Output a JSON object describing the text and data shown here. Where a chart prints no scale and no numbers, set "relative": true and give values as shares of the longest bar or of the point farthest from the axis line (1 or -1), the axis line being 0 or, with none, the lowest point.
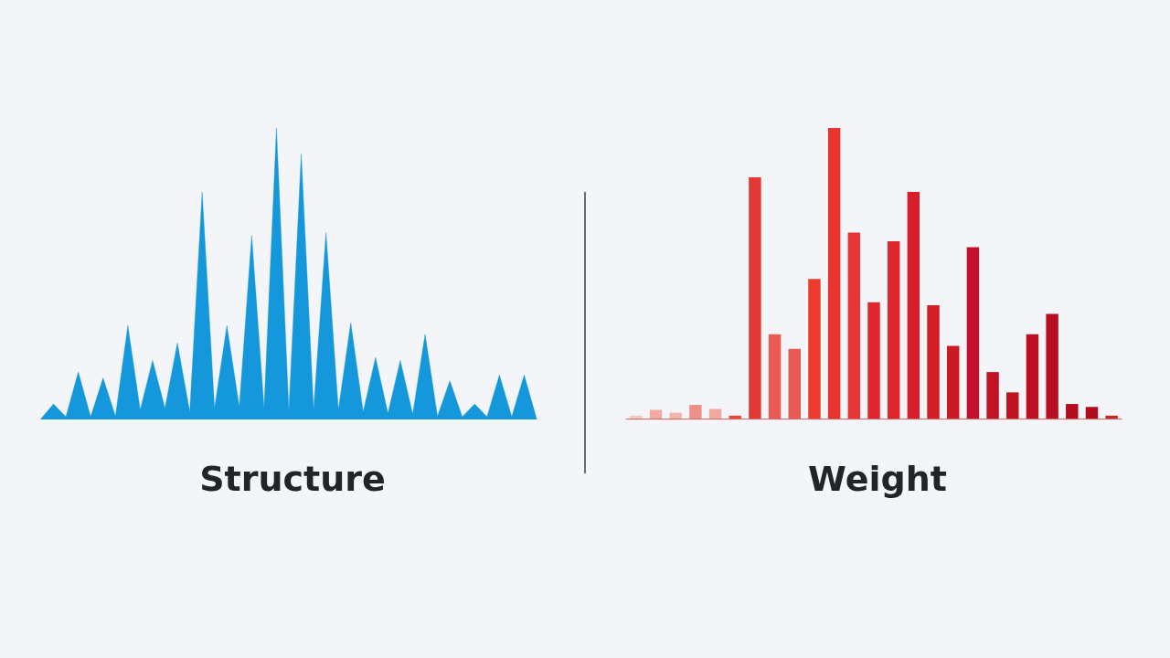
{
  "chart_data": [
    {
      "type": "area",
      "title": "Structure",
      "relative": true,
      "categories": [
        null,
        null,
        null,
        null,
        null,
        null,
        null,
        null,
        null,
        null,
        null,
        null,
        null,
        null,
        null,
        null,
        null,
        null,
        null,
        null,
        null,
        null,
        null,
        null,
        null,
        null,
        null,
        null,
        null,
        null,
        null,
        null,
        null,
        null,
        null,
        null,
        null,
        null,
        null,
        null,
        null
      ],
      "series": [
        {
          "color": "#1597dc",
          "values": [
            0.0,
            0.05,
            0.006,
            0.16,
            0.006,
            0.14,
            0.008,
            0.32,
            0.03,
            0.2,
            0.035,
            0.26,
            0.023,
            0.78,
            0.035,
            0.32,
            0.04,
            0.63,
            0.035,
            1.0,
            0.027,
            0.91,
            0.03,
            0.64,
            0.03,
            0.33,
            0.023,
            0.21,
            0.018,
            0.2,
            0.015,
            0.29,
            0.008,
            0.13,
            0.006,
            0.05,
            0.006,
            0.15,
            0.006,
            0.15,
            0.0
          ]
        }
      ]
    },
    {
      "type": "bar",
      "title": "Weight",
      "relative": true,
      "categories": [
        null,
        null,
        null,
        null,
        null,
        null,
        null,
        null,
        null,
        null,
        null,
        null,
        null,
        null,
        null,
        null,
        null,
        null,
        null,
        null,
        null,
        null,
        null,
        null,
        null
      ],
      "series": [
        {
          "colors": [
            "#f4c7c3",
            "#f0a9a3",
            "#f2b5b0",
            "#ee9088",
            "#f0a8a0",
            "#e8443a",
            "#e53935",
            "#eb5a52",
            "#e85a55",
            "#ec3b2f",
            "#e8342f",
            "#e73638",
            "#e3262d",
            "#e0252d",
            "#d61f2a",
            "#d41e26",
            "#cc1a24",
            "#c41129",
            "#c31226",
            "#c0121f",
            "#bb0f23",
            "#b80e22",
            "#b30c1e",
            "#b00c1d",
            "#c62828"
          ],
          "values": [
            0.01,
            0.03,
            0.02,
            0.047,
            0.033,
            0.01,
            0.83,
            0.29,
            0.24,
            0.48,
            1.0,
            0.64,
            0.4,
            0.61,
            0.78,
            0.39,
            0.25,
            0.59,
            0.16,
            0.09,
            0.29,
            0.36,
            0.05,
            0.04,
            0.01
          ]
        }
      ]
    }
  ]
}
